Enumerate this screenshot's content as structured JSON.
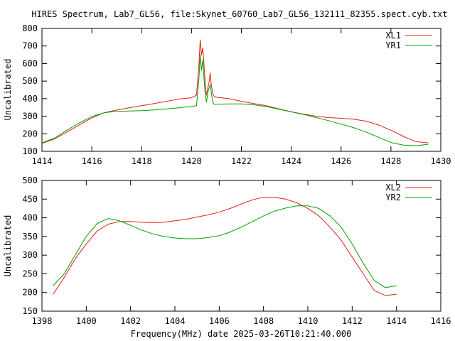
{
  "chart_data": [
    {
      "type": "line",
      "title": "HIRES Spectrum, Lab7_GL56, file:Skynet_60760_Lab7_GL56_132111_82355.spect.cyb.txt",
      "xlabel": "",
      "ylabel": "Uncalibrated",
      "xlim": [
        1414,
        1430
      ],
      "ylim": [
        100,
        800
      ],
      "xticks": [
        1414,
        1416,
        1418,
        1420,
        1422,
        1424,
        1426,
        1428,
        1430
      ],
      "yticks": [
        100,
        200,
        300,
        400,
        500,
        600,
        700,
        800
      ],
      "legend_position": "top-right",
      "grid": false,
      "series": [
        {
          "name": "XL1",
          "color": "#e0201b",
          "x": [
            1414.0,
            1414.5,
            1415.0,
            1415.5,
            1416.0,
            1416.5,
            1417.0,
            1417.5,
            1418.0,
            1418.5,
            1419.0,
            1419.5,
            1420.0,
            1420.2,
            1420.3,
            1420.35,
            1420.4,
            1420.45,
            1420.5,
            1420.55,
            1420.6,
            1420.65,
            1420.7,
            1420.75,
            1420.8,
            1420.85,
            1420.9,
            1420.95,
            1421.0,
            1421.5,
            1422.0,
            1422.5,
            1423.0,
            1423.5,
            1424.0,
            1424.5,
            1425.0,
            1425.5,
            1426.0,
            1426.5,
            1427.0,
            1427.5,
            1428.0,
            1428.5,
            1429.0,
            1429.5
          ],
          "y": [
            145,
            170,
            210,
            250,
            290,
            320,
            335,
            348,
            360,
            372,
            385,
            398,
            405,
            420,
            600,
            735,
            650,
            690,
            600,
            480,
            420,
            460,
            490,
            545,
            470,
            430,
            415,
            410,
            408,
            400,
            385,
            372,
            360,
            342,
            325,
            312,
            300,
            292,
            288,
            283,
            272,
            250,
            220,
            185,
            155,
            148
          ]
        },
        {
          "name": "YR1",
          "color": "#00a000",
          "x": [
            1414.0,
            1414.5,
            1415.0,
            1415.5,
            1416.0,
            1416.5,
            1417.0,
            1417.5,
            1418.0,
            1418.5,
            1419.0,
            1419.5,
            1420.0,
            1420.2,
            1420.3,
            1420.35,
            1420.4,
            1420.45,
            1420.5,
            1420.55,
            1420.6,
            1420.65,
            1420.7,
            1420.75,
            1420.8,
            1420.85,
            1420.9,
            1420.95,
            1421.0,
            1421.5,
            1422.0,
            1422.5,
            1423.0,
            1423.5,
            1424.0,
            1424.5,
            1425.0,
            1425.5,
            1426.0,
            1426.5,
            1427.0,
            1427.5,
            1428.0,
            1428.5,
            1429.0,
            1429.5
          ],
          "y": [
            148,
            175,
            220,
            262,
            298,
            320,
            328,
            330,
            332,
            336,
            342,
            348,
            355,
            360,
            520,
            650,
            560,
            620,
            520,
            420,
            380,
            430,
            460,
            480,
            430,
            380,
            368,
            368,
            368,
            370,
            370,
            365,
            355,
            340,
            325,
            310,
            292,
            275,
            255,
            235,
            210,
            180,
            150,
            135,
            132,
            140
          ]
        }
      ]
    },
    {
      "type": "line",
      "title": "",
      "xlabel": "Frequency(MHz) date 2025-03-26T10:21:40.000",
      "ylabel": "Uncalibrated",
      "xlim": [
        1398,
        1416
      ],
      "ylim": [
        150,
        500
      ],
      "xticks": [
        1398,
        1400,
        1402,
        1404,
        1406,
        1408,
        1410,
        1412,
        1414,
        1416
      ],
      "yticks": [
        150,
        200,
        250,
        300,
        350,
        400,
        450,
        500
      ],
      "legend_position": "top-right",
      "grid": false,
      "series": [
        {
          "name": "XL2",
          "color": "#e0201b",
          "x": [
            1398.5,
            1399.0,
            1399.5,
            1400.0,
            1400.5,
            1401.0,
            1401.5,
            1402.0,
            1402.5,
            1403.0,
            1403.5,
            1404.0,
            1404.5,
            1405.0,
            1405.5,
            1406.0,
            1406.5,
            1407.0,
            1407.5,
            1408.0,
            1408.5,
            1409.0,
            1409.5,
            1410.0,
            1410.5,
            1411.0,
            1411.5,
            1412.0,
            1412.5,
            1413.0,
            1413.5,
            1414.0
          ],
          "y": [
            195,
            240,
            290,
            330,
            365,
            383,
            390,
            390,
            388,
            387,
            388,
            392,
            396,
            402,
            408,
            415,
            425,
            437,
            448,
            455,
            455,
            450,
            440,
            425,
            405,
            375,
            340,
            295,
            250,
            205,
            192,
            195
          ]
        },
        {
          "name": "YR2",
          "color": "#00a000",
          "x": [
            1398.5,
            1399.0,
            1399.5,
            1400.0,
            1400.5,
            1401.0,
            1401.5,
            1402.0,
            1402.5,
            1403.0,
            1403.5,
            1404.0,
            1404.5,
            1405.0,
            1405.5,
            1406.0,
            1406.5,
            1407.0,
            1407.5,
            1408.0,
            1408.5,
            1409.0,
            1409.5,
            1410.0,
            1410.5,
            1411.0,
            1411.5,
            1412.0,
            1412.5,
            1413.0,
            1413.5,
            1414.0
          ],
          "y": [
            218,
            250,
            300,
            350,
            385,
            398,
            392,
            380,
            367,
            357,
            350,
            346,
            344,
            344,
            347,
            352,
            362,
            375,
            390,
            405,
            418,
            426,
            432,
            432,
            425,
            405,
            375,
            330,
            278,
            232,
            213,
            218
          ]
        }
      ]
    }
  ]
}
